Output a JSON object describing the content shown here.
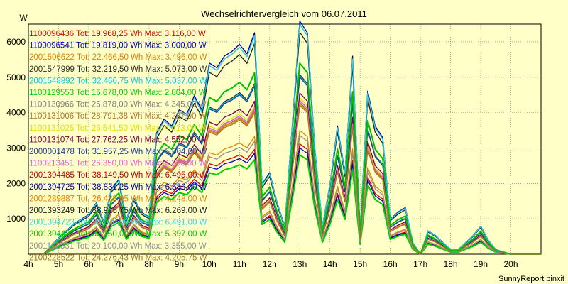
{
  "chart_data": {
    "type": "line",
    "title": "Wechselrichtervergleich vom 06.07.2011",
    "ylabel": "W",
    "xlabel": "",
    "credit": "SunnyReport pinxit",
    "ylim": [
      0,
      6500
    ],
    "xlim": [
      4,
      21
    ],
    "y_ticks": [
      1000,
      2000,
      3000,
      4000,
      5000,
      6000
    ],
    "x_ticks": [
      {
        "v": 4,
        "label": "4h"
      },
      {
        "v": 5,
        "label": "5h"
      },
      {
        "v": 6,
        "label": "6h"
      },
      {
        "v": 7,
        "label": "7h"
      },
      {
        "v": 8,
        "label": "8h"
      },
      {
        "v": 9,
        "label": "9h"
      },
      {
        "v": 10,
        "label": "10h"
      },
      {
        "v": 11,
        "label": "11h"
      },
      {
        "v": 12,
        "label": "12h"
      },
      {
        "v": 13,
        "label": "13h"
      },
      {
        "v": 14,
        "label": "14h"
      },
      {
        "v": 15,
        "label": "15h"
      },
      {
        "v": 16,
        "label": "16h"
      },
      {
        "v": 17,
        "label": "17h"
      },
      {
        "v": 18,
        "label": "18h"
      },
      {
        "v": 19,
        "label": "19h"
      },
      {
        "v": 20,
        "label": "20h"
      }
    ],
    "grid": "dotted",
    "legend_position": "top-left",
    "x": [
      4.5,
      5.0,
      5.25,
      5.5,
      5.75,
      6.0,
      6.25,
      6.5,
      6.75,
      7.0,
      7.25,
      7.5,
      7.75,
      8.0,
      8.25,
      8.5,
      8.75,
      9.0,
      9.25,
      9.5,
      9.75,
      10.0,
      10.25,
      10.5,
      10.75,
      11.0,
      11.25,
      11.5,
      11.75,
      12.0,
      12.25,
      12.5,
      12.75,
      13.0,
      13.25,
      13.5,
      13.75,
      14.0,
      14.25,
      14.5,
      14.75,
      15.0,
      15.25,
      15.5,
      15.75,
      16.0,
      16.25,
      16.5,
      16.75,
      17.0,
      17.25,
      17.5,
      17.75,
      18.0,
      18.25,
      18.5,
      18.75,
      19.0,
      19.25,
      19.5,
      19.75,
      20.0,
      20.5,
      21.0
    ],
    "series": [
      {
        "name": "1100096436",
        "label": "1100096436 Tot: 19.968,25 Wh Max: 3.116,00 W",
        "color": "#d80000",
        "peak": 3116
      },
      {
        "name": "1100096541",
        "label": "1100096541 Tot: 19.819,00 Wh Max: 3.000,00 W",
        "color": "#0000c8",
        "peak": 3000
      },
      {
        "name": "2001506622",
        "label": "2001506622 Tot: 22.466,50 Wh Max: 3.496,00 W",
        "color": "#e08000",
        "peak": 3496
      },
      {
        "name": "2001547999",
        "label": "2001547999 Tot: 32.219,50 Wh Max: 5.073,00 W",
        "color": "#303030",
        "peak": 5073
      },
      {
        "name": "2001548892",
        "label": "2001548892 Tot: 32.466,75 Wh Max: 5.037,00 W",
        "color": "#00c8e0",
        "peak": 5037
      },
      {
        "name": "1100129553",
        "label": "1100129553 Tot: 16.678,00 Wh Max: 2.804,00 W",
        "color": "#00d000",
        "peak": 2804
      },
      {
        "name": "1100130966",
        "label": "1100130966 Tot: 25.878,00 Wh Max: 4.345,00 W",
        "color": "#808080",
        "peak": 4345
      },
      {
        "name": "1100131006",
        "label": "1100131006 Tot: 28.791,38 Wh Max: 4.287,00 W",
        "color": "#b07830",
        "peak": 4287
      },
      {
        "name": "1100131025",
        "label": "1100131025 Tot: 26.541,50 Wh Max: 4.413,00 W",
        "color": "#e0e000",
        "peak": 4413
      },
      {
        "name": "1100131074",
        "label": "1100131074 Tot: 27.762,25 Wh Max: 4.552,00 W",
        "color": "#800040",
        "peak": 4552
      },
      {
        "name": "2000001478",
        "label": "2000001478 Tot: 31.957,25 Wh Max: 5.004,00 W",
        "color": "#2040a0",
        "peak": 5004
      },
      {
        "name": "1100213451",
        "label": "1100213451 Tot: 26.350,00 Wh Max: 4.336,00 W",
        "color": "#e060e0",
        "peak": 4336
      },
      {
        "name": "2001394485",
        "label": "2001394485 Tot: 38.149,50 Wh Max: 6.495,00 W",
        "color": "#c00000",
        "peak": 6495
      },
      {
        "name": "2001394725",
        "label": "2001394725 Tot: 38.831,25 Wh Max: 6.586,00 W",
        "color": "#0000a0",
        "peak": 6586
      },
      {
        "name": "2001289887",
        "label": "2001289887 Tot: 26.438,95 Wh Max: 4.248,00 W",
        "color": "#e08000",
        "peak": 4248
      },
      {
        "name": "2001393249",
        "label": "2001393249 Tot: 38.925,75 Wh Max: 6.269,00 W",
        "color": "#202020",
        "peak": 6269
      },
      {
        "name": "2001394723",
        "label": "2001394723 Tot: 38.000,00 Wh Max: 6.491,00 W",
        "color": "#20d8f0",
        "peak": 6491
      },
      {
        "name": "2001394487",
        "label": "2001394487 Tot: 32.150,00 Wh Max: 5.397,00 W",
        "color": "#00c000",
        "peak": 5397
      },
      {
        "name": "2001102331",
        "label": "2001102331 Tot: 20.100,00 Wh Max: 3.355,00 W",
        "color": "#909090",
        "peak": 3355
      },
      {
        "name": "2100228522",
        "label": "2100228522 Tot: 24.276,43 Wh Max: 4.205,75 W",
        "color": "#a07828",
        "peak": 4205.75
      }
    ],
    "profile": [
      0,
      0.07,
      0.1,
      0.13,
      0.15,
      0.17,
      0.22,
      0.14,
      0.28,
      0.32,
      0.15,
      0.24,
      0.18,
      0.16,
      0.52,
      0.58,
      0.55,
      0.62,
      0.6,
      0.68,
      0.62,
      0.82,
      0.8,
      0.85,
      0.87,
      0.9,
      0.86,
      0.95,
      0.3,
      0.35,
      0.22,
      0.12,
      0.55,
      1.0,
      0.95,
      0.45,
      0.12,
      0.3,
      0.55,
      0.35,
      0.85,
      0.1,
      0.7,
      0.55,
      0.5,
      0.15,
      0.18,
      0.2,
      0.05,
      0.0,
      0.1,
      0.08,
      0.05,
      0.02,
      0.02,
      0.05,
      0.08,
      0.12,
      0.06,
      0.02,
      0.01,
      0.0,
      0.0,
      0.0
    ]
  }
}
